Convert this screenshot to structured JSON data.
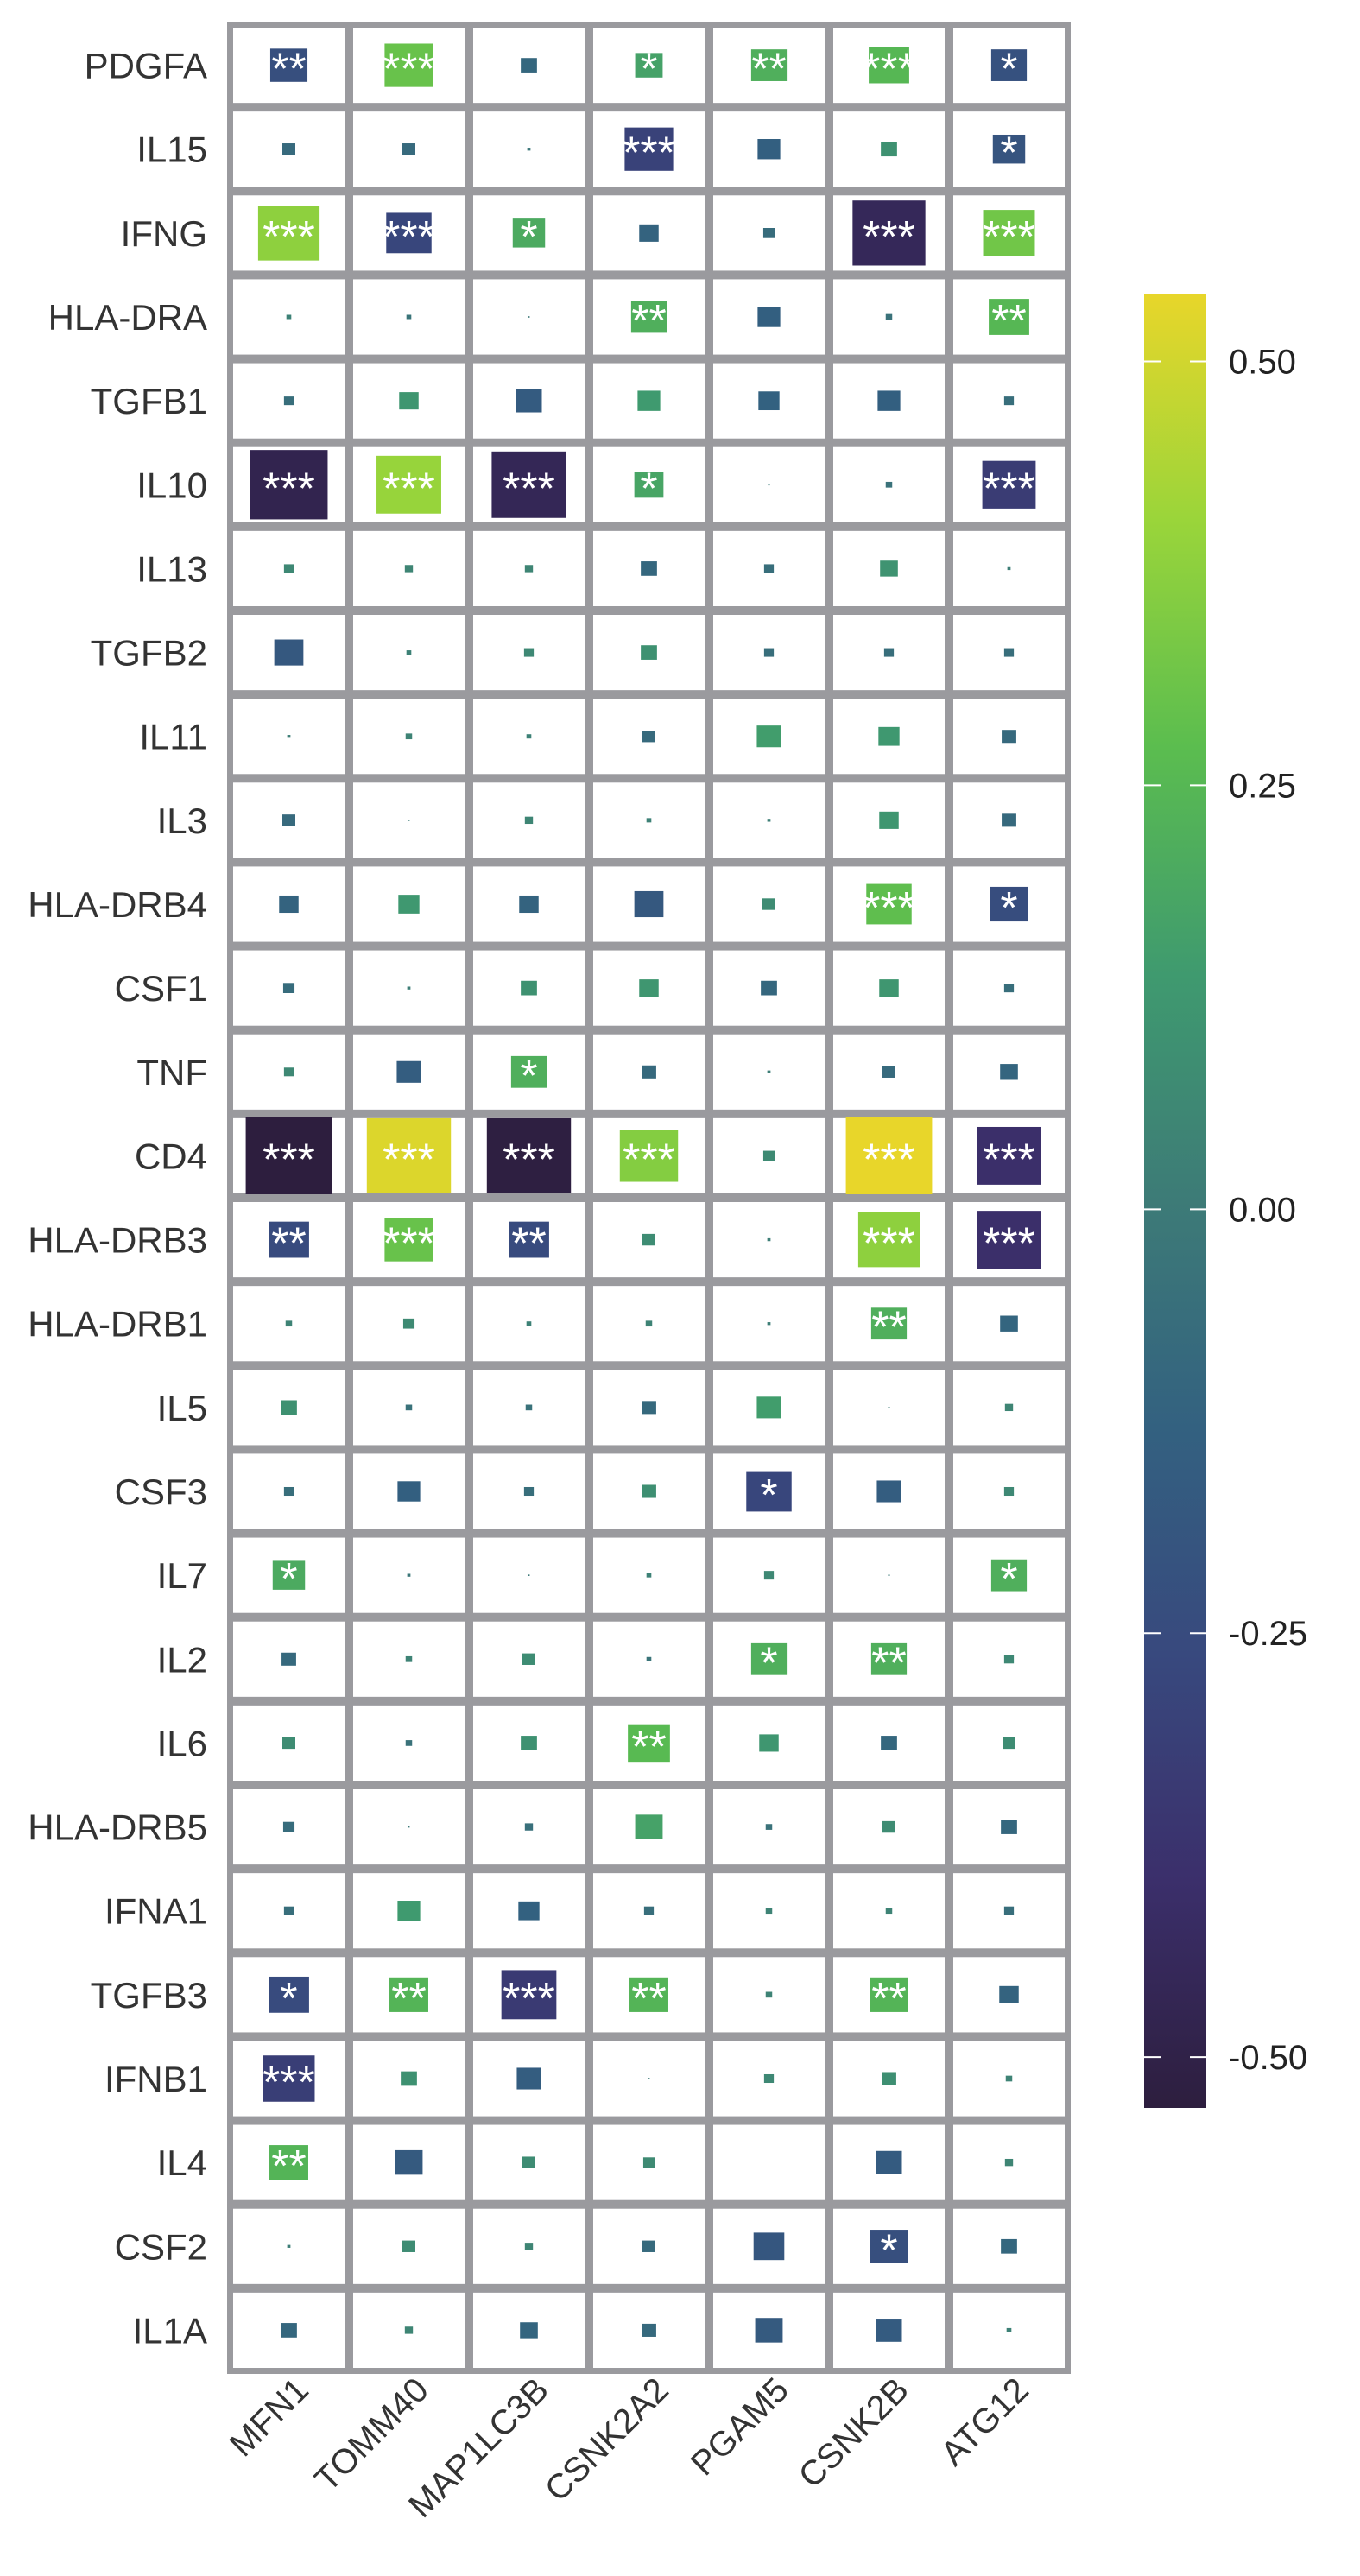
{
  "chart_data": {
    "type": "heatmap",
    "title": "",
    "xlabel": "",
    "ylabel": "",
    "columns": [
      "MFN1",
      "TOMM40",
      "MAP1LC3B",
      "CSNK2A2",
      "PGAM5",
      "CSNK2B",
      "ATG12"
    ],
    "rows": [
      "PDGFA",
      "IL15",
      "IFNG",
      "HLA-DRA",
      "TGFB1",
      "IL10",
      "IL13",
      "TGFB2",
      "IL11",
      "IL3",
      "HLA-DRB4",
      "CSF1",
      "TNF",
      "CD4",
      "HLA-DRB3",
      "HLA-DRB1",
      "IL5",
      "CSF3",
      "IL7",
      "IL2",
      "IL6",
      "HLA-DRB5",
      "IFNA1",
      "TGFB3",
      "IFNB1",
      "IL4",
      "CSF2",
      "IL1A"
    ],
    "values": [
      [
        -0.23,
        0.3,
        -0.1,
        0.17,
        0.22,
        0.25,
        -0.22
      ],
      [
        -0.08,
        -0.08,
        -0.02,
        -0.3,
        -0.14,
        0.1,
        -0.2
      ],
      [
        0.38,
        -0.28,
        0.2,
        -0.12,
        -0.07,
        -0.45,
        0.32
      ],
      [
        0.03,
        -0.03,
        -0.01,
        0.22,
        -0.14,
        -0.04,
        0.25
      ],
      [
        -0.06,
        0.12,
        -0.16,
        0.14,
        -0.13,
        -0.14,
        -0.06
      ],
      [
        -0.48,
        0.4,
        -0.46,
        0.18,
        -0.01,
        -0.04,
        -0.33
      ],
      [
        0.06,
        0.05,
        0.05,
        -0.1,
        -0.06,
        0.11,
        0.02
      ],
      [
        -0.18,
        0.03,
        0.06,
        0.1,
        -0.06,
        -0.06,
        -0.06
      ],
      [
        0.02,
        0.04,
        0.03,
        -0.08,
        0.15,
        0.13,
        -0.09
      ],
      [
        -0.08,
        0.01,
        0.05,
        0.03,
        0.02,
        0.12,
        -0.09
      ],
      [
        -0.12,
        0.13,
        -0.12,
        -0.18,
        0.08,
        0.28,
        -0.24
      ],
      [
        -0.07,
        0.02,
        0.1,
        0.12,
        -0.1,
        0.12,
        -0.06
      ],
      [
        0.06,
        -0.15,
        0.22,
        -0.09,
        0.02,
        -0.08,
        -0.11
      ],
      [
        -0.54,
        0.52,
        -0.52,
        0.36,
        0.07,
        0.54,
        -0.4
      ],
      [
        -0.25,
        0.3,
        -0.25,
        0.08,
        0.02,
        0.38,
        -0.4
      ],
      [
        0.04,
        0.07,
        0.03,
        0.04,
        0.02,
        0.22,
        -0.11
      ],
      [
        0.1,
        -0.04,
        -0.04,
        -0.09,
        0.15,
        0.01,
        0.05
      ],
      [
        -0.06,
        -0.14,
        -0.06,
        0.09,
        -0.28,
        -0.15,
        0.06
      ],
      [
        0.2,
        -0.02,
        -0.01,
        0.03,
        0.06,
        -0.01,
        0.22
      ],
      [
        -0.09,
        0.04,
        0.08,
        -0.03,
        0.22,
        0.22,
        0.06
      ],
      [
        0.08,
        -0.04,
        0.1,
        0.26,
        0.12,
        -0.1,
        0.08
      ],
      [
        -0.07,
        -0.01,
        -0.05,
        0.17,
        -0.04,
        0.08,
        -0.1
      ],
      [
        -0.06,
        0.14,
        -0.13,
        -0.06,
        0.04,
        0.04,
        -0.06
      ],
      [
        -0.25,
        0.24,
        -0.34,
        0.24,
        0.04,
        0.24,
        -0.12
      ],
      [
        -0.32,
        0.1,
        -0.15,
        0.01,
        0.06,
        0.09,
        0.04
      ],
      [
        0.24,
        -0.17,
        0.08,
        0.07,
        0.0,
        -0.16,
        0.05
      ],
      [
        0.02,
        0.08,
        0.05,
        -0.08,
        -0.19,
        -0.23,
        -0.1
      ],
      [
        -0.1,
        0.05,
        -0.11,
        -0.09,
        -0.17,
        -0.16,
        0.03
      ]
    ],
    "significance": [
      [
        "**",
        "***",
        "",
        "*",
        "**",
        "***",
        "*"
      ],
      [
        "",
        "",
        "",
        "***",
        "",
        "",
        "*"
      ],
      [
        "***",
        "***",
        "*",
        "",
        "",
        "***",
        "***"
      ],
      [
        "",
        "",
        "",
        "**",
        "",
        "",
        "**"
      ],
      [
        "",
        "",
        "",
        "",
        "",
        "",
        ""
      ],
      [
        "***",
        "***",
        "***",
        "*",
        "",
        "",
        "***"
      ],
      [
        "",
        "",
        "",
        "",
        "",
        "",
        ""
      ],
      [
        "",
        "",
        "",
        "",
        "",
        "",
        ""
      ],
      [
        "",
        "",
        "",
        "",
        "",
        "",
        ""
      ],
      [
        "",
        "",
        "",
        "",
        "",
        "",
        ""
      ],
      [
        "",
        "",
        "",
        "",
        "",
        "***",
        "*"
      ],
      [
        "",
        "",
        "",
        "",
        "",
        "",
        ""
      ],
      [
        "",
        "",
        "*",
        "",
        "",
        "",
        ""
      ],
      [
        "***",
        "***",
        "***",
        "***",
        "",
        "***",
        "***"
      ],
      [
        "**",
        "***",
        "**",
        "",
        "",
        "***",
        "***"
      ],
      [
        "",
        "",
        "",
        "",
        "",
        "**",
        ""
      ],
      [
        "",
        "",
        "",
        "",
        "",
        "",
        ""
      ],
      [
        "",
        "",
        "",
        "",
        "*",
        "",
        ""
      ],
      [
        "*",
        "",
        "",
        "",
        "",
        "",
        "*"
      ],
      [
        "",
        "",
        "",
        "",
        "*",
        "**",
        ""
      ],
      [
        "",
        "",
        "",
        "**",
        "",
        "",
        ""
      ],
      [
        "",
        "",
        "",
        "",
        "",
        "",
        ""
      ],
      [
        "",
        "",
        "",
        "",
        "",
        "",
        ""
      ],
      [
        "*",
        "**",
        "***",
        "**",
        "",
        "**",
        ""
      ],
      [
        "***",
        "",
        "",
        "",
        "",
        "",
        ""
      ],
      [
        "**",
        "",
        "",
        "",
        "",
        "",
        ""
      ],
      [
        "",
        "",
        "",
        "",
        "",
        "*",
        ""
      ],
      [
        "",
        "",
        "",
        "",
        "",
        "",
        ""
      ]
    ],
    "colorbar": {
      "range": [
        -0.53,
        0.54
      ],
      "ticks": [
        0.5,
        0.25,
        0.0,
        -0.25,
        -0.5
      ],
      "tick_labels": [
        "0.50",
        "0.25",
        "0.00",
        "-0.25",
        "-0.50"
      ],
      "colormap": [
        "#2d1e3e",
        "#3b2f6b",
        "#38497e",
        "#336180",
        "#3d7b77",
        "#3f9a6f",
        "#5bbd4f",
        "#9ad53a",
        "#e8d62a"
      ]
    },
    "grid_color": "#9a9a9e",
    "star_color": "#ffffff"
  }
}
